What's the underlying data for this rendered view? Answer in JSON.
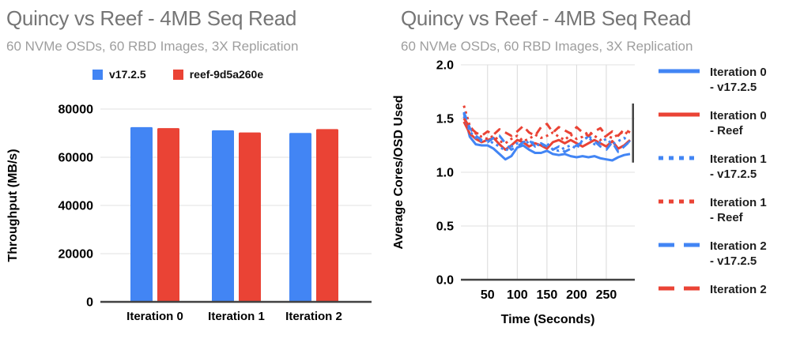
{
  "chart_data": [
    {
      "type": "bar",
      "title": "Quincy vs Reef - 4MB Seq Read",
      "subtitle": "60 NVMe OSDs, 60 RBD Images, 3X Replication",
      "categories": [
        "Iteration 0",
        "Iteration 1",
        "Iteration 2"
      ],
      "series": [
        {
          "name": "v17.2.5",
          "color": "#4285F4",
          "values": [
            72500,
            71200,
            70100
          ]
        },
        {
          "name": "reef-9d5a260e",
          "color": "#EA4335",
          "values": [
            72100,
            70300,
            71700
          ]
        }
      ],
      "xlabel": "",
      "ylabel": "Throughput (MB/s)",
      "ylim": [
        0,
        80000
      ],
      "yticks": [
        0,
        20000,
        40000,
        60000,
        80000
      ],
      "grid": true,
      "legend_position": "top"
    },
    {
      "type": "line",
      "title": "Quincy vs Reef - 4MB Seq Read",
      "subtitle": "60 NVMe OSDs, 60 RBD Images, 3X Replication",
      "xlabel": "Time (Seconds)",
      "ylabel": "Average Cores/OSD Used",
      "xlim": [
        5,
        298
      ],
      "ylim": [
        0,
        2.0
      ],
      "xticks": [
        50,
        100,
        150,
        200,
        250
      ],
      "yticks": [
        0,
        0.5,
        1.0,
        1.5,
        2.0
      ],
      "grid": true,
      "legend_position": "right",
      "x": [
        10,
        20,
        30,
        40,
        50,
        60,
        70,
        80,
        90,
        100,
        110,
        120,
        130,
        140,
        150,
        160,
        170,
        180,
        190,
        200,
        210,
        220,
        230,
        240,
        250,
        260,
        270,
        280,
        290
      ],
      "series": [
        {
          "name": "Iteration 0 - v17.2.5",
          "legend_lines": [
            "Iteration 0",
            "- v17.2.5"
          ],
          "color": "#4285F4",
          "dash": "solid",
          "values": [
            1.55,
            1.33,
            1.26,
            1.25,
            1.25,
            1.22,
            1.17,
            1.12,
            1.15,
            1.23,
            1.25,
            1.21,
            1.18,
            1.18,
            1.2,
            1.17,
            1.16,
            1.17,
            1.15,
            1.14,
            1.15,
            1.14,
            1.15,
            1.13,
            1.12,
            1.11,
            1.14,
            1.16,
            1.17
          ]
        },
        {
          "name": "Iteration 0 - Reef",
          "legend_lines": [
            "Iteration 0",
            "- Reef"
          ],
          "color": "#EA4335",
          "dash": "solid",
          "values": [
            1.47,
            1.36,
            1.31,
            1.28,
            1.3,
            1.32,
            1.26,
            1.21,
            1.25,
            1.3,
            1.28,
            1.24,
            1.27,
            1.25,
            1.22,
            1.28,
            1.3,
            1.27,
            1.3,
            1.27,
            1.24,
            1.27,
            1.3,
            1.27,
            1.24,
            1.29,
            1.22,
            1.25,
            1.3
          ]
        },
        {
          "name": "Iteration 1 - v17.2.5",
          "legend_lines": [
            "Iteration 1",
            "- v17.2.5"
          ],
          "color": "#4285F4",
          "dash": "dotted",
          "values": [
            1.52,
            1.38,
            1.32,
            1.29,
            1.3,
            1.27,
            1.24,
            1.2,
            1.24,
            1.27,
            1.25,
            1.29,
            1.27,
            1.24,
            1.27,
            1.21,
            1.2,
            1.23,
            1.25,
            1.22,
            1.3,
            1.33,
            1.26,
            1.28,
            1.31,
            1.26,
            1.29,
            1.32,
            1.28
          ]
        },
        {
          "name": "Iteration 1 - Reef",
          "legend_lines": [
            "Iteration 1",
            "- Reef"
          ],
          "color": "#EA4335",
          "dash": "dotted",
          "values": [
            1.62,
            1.43,
            1.36,
            1.33,
            1.31,
            1.34,
            1.29,
            1.27,
            1.31,
            1.34,
            1.29,
            1.31,
            1.35,
            1.32,
            1.34,
            1.37,
            1.33,
            1.3,
            1.35,
            1.31,
            1.33,
            1.38,
            1.34,
            1.3,
            1.34,
            1.32,
            1.35,
            1.38,
            1.34
          ]
        },
        {
          "name": "Iteration 2 - v17.2.5",
          "legend_lines": [
            "Iteration 2",
            "- v17.2.5"
          ],
          "color": "#4285F4",
          "dash": "dashed",
          "values": [
            1.56,
            1.41,
            1.34,
            1.3,
            1.28,
            1.32,
            1.34,
            1.27,
            1.21,
            1.24,
            1.28,
            1.3,
            1.24,
            1.27,
            1.24,
            1.21,
            1.24,
            1.19,
            1.22,
            1.25,
            1.28,
            1.34,
            1.29,
            1.24,
            1.21,
            1.28,
            1.19,
            1.24,
            1.29
          ]
        },
        {
          "name": "Iteration 2",
          "legend_lines": [
            "Iteration 2"
          ],
          "color": "#EA4335",
          "dash": "dashed",
          "values": [
            1.5,
            1.42,
            1.37,
            1.34,
            1.38,
            1.35,
            1.4,
            1.37,
            1.34,
            1.38,
            1.43,
            1.37,
            1.34,
            1.42,
            1.45,
            1.37,
            1.42,
            1.39,
            1.36,
            1.42,
            1.37,
            1.34,
            1.38,
            1.41,
            1.34,
            1.38,
            1.34,
            1.4,
            1.37
          ]
        }
      ],
      "end_spike": {
        "x": 295,
        "y_from": 1.09,
        "y_to": 1.64,
        "color": "#444444"
      }
    }
  ],
  "colors": {
    "title": "#757575",
    "subtitle": "#9e9e9e",
    "axis_line": "#424242",
    "gridline": "#e0e0e0",
    "vertical_gridline": "#d9d9d9",
    "tick_label": "#000000"
  }
}
